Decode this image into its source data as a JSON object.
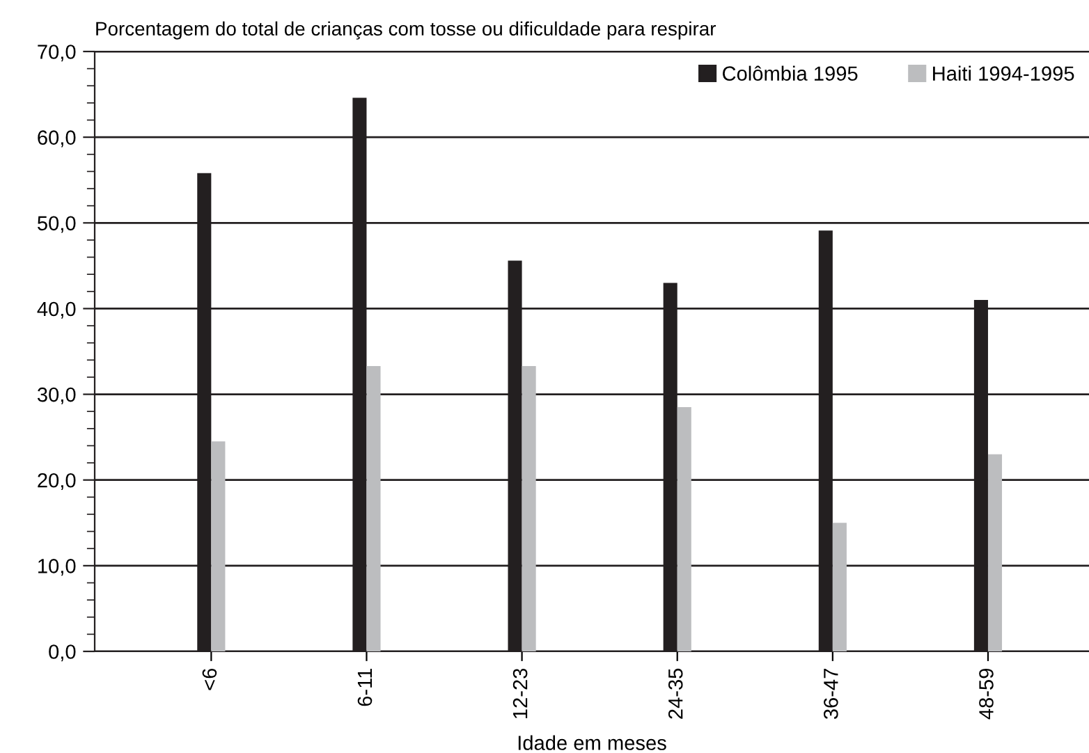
{
  "chart_data": {
    "type": "bar",
    "ylabel": "Porcentagem do total de crianças com tosse ou dificuldade para respirar",
    "xlabel": "Idade em meses",
    "categories": [
      "<6",
      "6-11",
      "12-23",
      "24-35",
      "36-47",
      "48-59"
    ],
    "series": [
      {
        "name": "Colômbia 1995",
        "color": "#231f20",
        "values": [
          55.8,
          64.6,
          45.6,
          43.0,
          49.1,
          41.0
        ]
      },
      {
        "name": "Haiti 1994-1995",
        "color": "#bcbdbf",
        "values": [
          24.5,
          33.3,
          33.3,
          28.5,
          15.0,
          23.0
        ]
      }
    ],
    "ylim": [
      0,
      70
    ],
    "yticks": [
      {
        "value": 0,
        "label": "0,0"
      },
      {
        "value": 2,
        "label": null
      },
      {
        "value": 4,
        "label": null
      },
      {
        "value": 6,
        "label": null
      },
      {
        "value": 8,
        "label": null
      },
      {
        "value": 10,
        "label": "10,0"
      },
      {
        "value": 12,
        "label": null
      },
      {
        "value": 14,
        "label": null
      },
      {
        "value": 16,
        "label": null
      },
      {
        "value": 18,
        "label": null
      },
      {
        "value": 20,
        "label": "20,0"
      },
      {
        "value": 22,
        "label": null
      },
      {
        "value": 24,
        "label": null
      },
      {
        "value": 26,
        "label": null
      },
      {
        "value": 28,
        "label": null
      },
      {
        "value": 30,
        "label": "30,0"
      },
      {
        "value": 32,
        "label": null
      },
      {
        "value": 34,
        "label": null
      },
      {
        "value": 36,
        "label": null
      },
      {
        "value": 38,
        "label": null
      },
      {
        "value": 40,
        "label": "40,0"
      },
      {
        "value": 42,
        "label": null
      },
      {
        "value": 44,
        "label": null
      },
      {
        "value": 46,
        "label": null
      },
      {
        "value": 48,
        "label": null
      },
      {
        "value": 50,
        "label": "50,0"
      },
      {
        "value": 52,
        "label": null
      },
      {
        "value": 54,
        "label": null
      },
      {
        "value": 56,
        "label": null
      },
      {
        "value": 58,
        "label": null
      },
      {
        "value": 60,
        "label": "60,0"
      },
      {
        "value": 62,
        "label": null
      },
      {
        "value": 64,
        "label": null
      },
      {
        "value": 66,
        "label": null
      },
      {
        "value": 68,
        "label": null
      },
      {
        "value": 70,
        "label": "70,0"
      }
    ],
    "grid": "y",
    "legend": "top right"
  }
}
